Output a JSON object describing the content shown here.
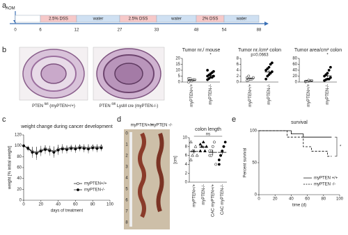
{
  "panel_labels": [
    "a",
    "b",
    "c",
    "d",
    "e"
  ],
  "timeline": {
    "start_label": "AOM",
    "days": [
      0,
      6,
      12,
      27,
      33,
      48,
      54,
      88
    ],
    "segments": [
      {
        "label": "2.5% DSS",
        "color": "#f6c9c9"
      },
      {
        "label": "water",
        "color": "#cfe0f2"
      },
      {
        "label": "2.5% DSS",
        "color": "#f6c9c9"
      },
      {
        "label": "water",
        "color": "#cfe0f2"
      },
      {
        "label": "2% DSS",
        "color": "#f6c9c9"
      },
      {
        "label": "water",
        "color": "#cfe0f2"
      }
    ]
  },
  "histology": [
    {
      "prefix": "PTEN",
      "sup": "fl/fl",
      "suffix": "(myPTEN+/+)"
    },
    {
      "prefix": "PTEN",
      "sup": "fl/fl",
      "suffix": "LysM cre (myPTEN-/-)"
    }
  ],
  "colon_photo": {
    "labels": [
      "myPTEN+/+",
      "myPTEN -/-"
    ],
    "ruler": [
      0,
      1,
      2,
      3,
      4,
      5,
      6,
      7,
      8
    ]
  },
  "chart_data": [
    {
      "type": "dotplot",
      "title": "Tumor nr./ mouse",
      "annotation": "*",
      "ylim": [
        0,
        20
      ],
      "yticks": [
        0,
        5,
        10,
        15,
        20
      ],
      "series": [
        {
          "name": "myPTEN+/+",
          "marker": "open-circle",
          "color": "#000000",
          "values": [
            0,
            1,
            1,
            2,
            2,
            3,
            3,
            1
          ],
          "mean": 1.6,
          "sem": 0.4
        },
        {
          "name": "myPTEN-/-",
          "marker": "filled-circle",
          "color": "#000000",
          "values": [
            2,
            3,
            4,
            4,
            5,
            5,
            6,
            7,
            8,
            9,
            10
          ],
          "mean": 5.7,
          "sem": 0.8
        }
      ]
    },
    {
      "type": "dotplot",
      "title": "Tumor nr./cm² colon",
      "annotation": "p=0.0663",
      "ylim": [
        0,
        8
      ],
      "yticks": [
        0,
        2,
        4,
        6,
        8
      ],
      "series": [
        {
          "name": "myPTEN+/+",
          "marker": "open-circle",
          "color": "#000000",
          "values": [
            0.5,
            0.8,
            1,
            1,
            1.5,
            1.5,
            2,
            1
          ],
          "mean": 1.2,
          "sem": 0.2
        },
        {
          "name": "myPTEN-/-",
          "marker": "filled-circle",
          "color": "#000000",
          "values": [
            1,
            2,
            2.5,
            3,
            3.5,
            4,
            4.5,
            5,
            6,
            6.5
          ],
          "mean": 3.4,
          "sem": 0.6
        }
      ]
    },
    {
      "type": "dotplot",
      "title": "Tumor area/cm² colon",
      "annotation": "*",
      "ylim": [
        0,
        80
      ],
      "yticks": [
        0,
        20,
        40,
        60,
        80
      ],
      "series": [
        {
          "name": "myPTEN+/+",
          "marker": "open-circle",
          "color": "#000000",
          "values": [
            1,
            2,
            3,
            4,
            5,
            3,
            2,
            6
          ],
          "mean": 3.3,
          "sem": 0.6
        },
        {
          "name": "myPTEN-/-",
          "marker": "filled-circle",
          "color": "#000000",
          "values": [
            5,
            8,
            10,
            10,
            15,
            20,
            25,
            30,
            40,
            50
          ],
          "mean": 21,
          "sem": 4.5
        }
      ]
    },
    {
      "type": "line",
      "title": "weight change during cancer development",
      "xlabel": "days of treatment",
      "ylabel": "weight [% initial weight]",
      "xlim": [
        0,
        100
      ],
      "xticks": [
        0,
        20,
        40,
        60,
        80,
        100
      ],
      "ylim": [
        0,
        120
      ],
      "yticks": [
        0,
        20,
        40,
        60,
        80,
        100,
        120
      ],
      "legend": "lower right",
      "x": [
        0,
        5,
        10,
        15,
        20,
        25,
        30,
        35,
        40,
        45,
        50,
        55,
        60,
        65,
        70,
        75,
        80,
        85,
        90
      ],
      "series": [
        {
          "name": "myPTEN+/+",
          "marker": "open-circle",
          "color": "#000000",
          "values": [
            100,
            96,
            90,
            88,
            92,
            95,
            93,
            90,
            94,
            96,
            95,
            97,
            96,
            98,
            97,
            96,
            98,
            97,
            98
          ],
          "errors": [
            2,
            4,
            8,
            10,
            8,
            6,
            7,
            9,
            8,
            7,
            6,
            5,
            6,
            5,
            6,
            7,
            5,
            6,
            5
          ]
        },
        {
          "name": "myPTEN-/-",
          "marker": "filled-circle",
          "color": "#000000",
          "values": [
            100,
            95,
            88,
            86,
            90,
            93,
            91,
            88,
            92,
            94,
            93,
            95,
            94,
            96,
            95,
            94,
            96,
            95,
            96
          ],
          "errors": [
            3,
            5,
            10,
            12,
            9,
            8,
            9,
            10,
            9,
            8,
            7,
            6,
            7,
            6,
            7,
            8,
            6,
            7,
            6
          ]
        }
      ]
    },
    {
      "type": "dotplot",
      "title": "colon length",
      "annotation": "ns",
      "ylabel": "[cm]",
      "ylim": [
        0,
        10
      ],
      "yticks": [
        0,
        2,
        4,
        6,
        8,
        10
      ],
      "series": [
        {
          "name": "myPTEN+/+",
          "marker": "open-triangle",
          "color": "#000000",
          "values": [
            5,
            6,
            7,
            8,
            6,
            9,
            7
          ],
          "mean": 6.9,
          "sem": 0.5
        },
        {
          "name": "myPTEN-/-",
          "marker": "filled-triangle",
          "color": "#000000",
          "values": [
            7,
            8,
            9,
            7,
            8,
            8.5
          ],
          "mean": 7.9,
          "sem": 0.3
        },
        {
          "name": "CAC myPTEN+/+",
          "marker": "open-circle",
          "color": "#000000",
          "values": [
            6,
            7,
            8,
            9,
            4,
            7,
            6
          ],
          "mean": 6.7,
          "sem": 0.6
        },
        {
          "name": "CAC myPTEN-/-",
          "marker": "filled-circle",
          "color": "#000000",
          "values": [
            5,
            6,
            7,
            8,
            9,
            4,
            6,
            7,
            8
          ],
          "mean": 6.7,
          "sem": 0.5
        }
      ]
    },
    {
      "type": "step",
      "title": "survival",
      "xlabel": "time (d)",
      "ylabel": "Percent survival",
      "annotation": "*",
      "xlim": [
        0,
        100
      ],
      "xticks": [
        0,
        20,
        40,
        60,
        80,
        100
      ],
      "ylim": [
        0,
        100
      ],
      "yticks": [
        0,
        50,
        100
      ],
      "legend": "lower right",
      "series": [
        {
          "name": "myPTEN +/+",
          "color": "#000000",
          "dash": false,
          "x": [
            0,
            40,
            40,
            55,
            55,
            90
          ],
          "values": [
            100,
            100,
            95,
            95,
            90,
            90
          ]
        },
        {
          "name": "myPTEN -/-",
          "color": "#000000",
          "dash": true,
          "x": [
            0,
            35,
            35,
            55,
            55,
            65,
            65,
            85,
            85,
            90
          ],
          "values": [
            100,
            100,
            90,
            90,
            75,
            75,
            68,
            68,
            60,
            60
          ]
        }
      ]
    }
  ]
}
